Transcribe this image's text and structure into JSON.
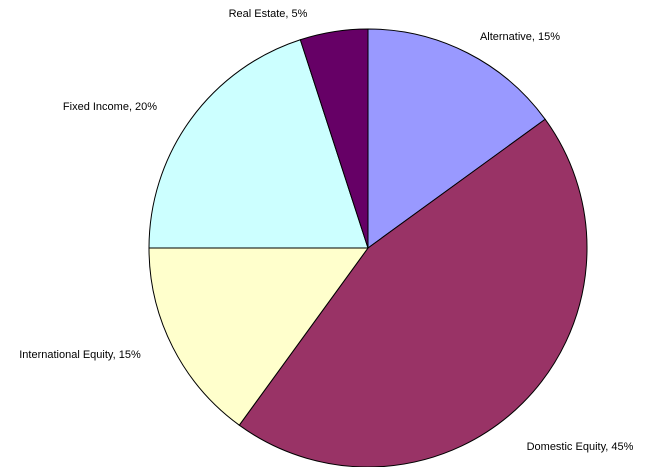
{
  "chart_data": {
    "type": "pie",
    "values": [
      15,
      45,
      15,
      20,
      5
    ],
    "value_labels": [
      "Alternative, 15%",
      "Domestic Equity, 45%",
      "International Equity, 15%",
      "Fixed Income, 20%",
      "Real Estate, 5%"
    ],
    "colors": [
      "#9999ff",
      "#993366",
      "#ffffcc",
      "#ccffff",
      "#660066"
    ]
  }
}
